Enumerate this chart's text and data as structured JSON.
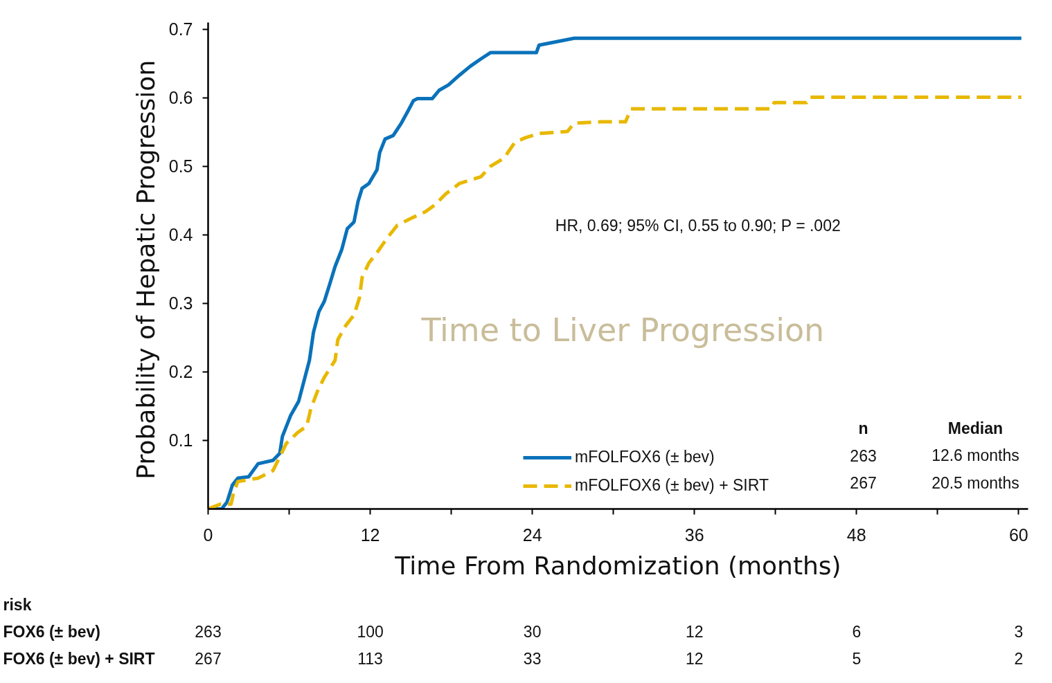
{
  "chart_data": {
    "type": "line",
    "xlabel": "Time From Randomization (months)",
    "ylabel": "Probability of  Hepatic Progression",
    "xlim": [
      0,
      60.7
    ],
    "ylim": [
      0,
      0.71
    ],
    "xticks": [
      0,
      {
        "value": 6,
        "label": null
      },
      12,
      {
        "value": 18,
        "label": null
      },
      24,
      {
        "value": 30,
        "label": null
      },
      36,
      {
        "value": 42,
        "label": null
      },
      48,
      {
        "value": 54,
        "label": null
      },
      60
    ],
    "yticks": [
      0.1,
      0.2,
      0.3,
      0.4,
      0.5,
      0.6,
      0.7
    ],
    "grid": false,
    "legend": "bottom right",
    "marker": "none",
    "series": [
      {
        "name": "mFOLFOX6 (± bev)",
        "color": "#0a72ba",
        "line_style": "solid",
        "x": [
          0,
          1.0,
          1.4,
          1.8,
          2.2,
          3.0,
          3.7,
          4.8,
          5.3,
          5.5,
          6.1,
          6.7,
          7.1,
          7.5,
          7.8,
          8.2,
          8.6,
          9.0,
          9.4,
          9.9,
          10.3,
          10.8,
          11.1,
          11.4,
          11.9,
          12.5,
          12.7,
          13.1,
          13.7,
          14.3,
          14.8,
          15.2,
          15.5,
          16.6,
          17.1,
          17.8,
          18.6,
          19.4,
          20.2,
          20.9,
          24.3,
          24.5,
          25.8,
          27.1,
          60.2
        ],
        "values": [
          0,
          0,
          0.01,
          0.035,
          0.045,
          0.047,
          0.066,
          0.071,
          0.081,
          0.106,
          0.136,
          0.157,
          0.187,
          0.217,
          0.258,
          0.288,
          0.303,
          0.328,
          0.354,
          0.379,
          0.409,
          0.419,
          0.449,
          0.468,
          0.475,
          0.495,
          0.52,
          0.54,
          0.545,
          0.563,
          0.581,
          0.596,
          0.599,
          0.599,
          0.611,
          0.619,
          0.633,
          0.646,
          0.657,
          0.666,
          0.666,
          0.677,
          0.682,
          0.687,
          0.687
        ]
      },
      {
        "name": "mFOLFOX6 (± bev) + SIRT",
        "color": "#e8b800",
        "line_style": "dashed",
        "x": [
          0,
          0.9,
          1.7,
          1.9,
          2.2,
          3.7,
          4.8,
          5.3,
          5.8,
          6.6,
          7.3,
          7.6,
          8.1,
          8.6,
          9.4,
          9.6,
          10.2,
          10.8,
          11.2,
          11.4,
          11.9,
          12.5,
          13.2,
          14.0,
          15.0,
          16.1,
          16.8,
          17.6,
          18.6,
          20.2,
          20.9,
          21.9,
          22.7,
          23.5,
          24.5,
          26.6,
          27.1,
          29.1,
          30.9,
          31.3,
          41.7,
          41.9,
          44.3,
          44.5,
          60.2
        ],
        "values": [
          0,
          0.007,
          0.007,
          0.025,
          0.04,
          0.045,
          0.056,
          0.076,
          0.096,
          0.111,
          0.121,
          0.146,
          0.172,
          0.192,
          0.217,
          0.247,
          0.268,
          0.283,
          0.308,
          0.338,
          0.359,
          0.374,
          0.394,
          0.414,
          0.424,
          0.434,
          0.444,
          0.46,
          0.475,
          0.485,
          0.5,
          0.512,
          0.535,
          0.542,
          0.548,
          0.551,
          0.563,
          0.565,
          0.565,
          0.584,
          0.584,
          0.593,
          0.593,
          0.601,
          0.601
        ]
      }
    ],
    "annotations": [
      "HR, 0.69; 95% CI, 0.55 to 0.90; P = .002",
      "Time to Liver Progression",
      "n",
      "Median",
      "263",
      "12.6 months",
      "267",
      "20.5 months",
      "risk",
      "FOX6 (± bev)",
      "263",
      "100",
      "30",
      "12",
      "6",
      "3",
      "FOX6 (± bev) + SIRT",
      "267",
      "113",
      "33",
      "12",
      "5",
      "2"
    ]
  }
}
